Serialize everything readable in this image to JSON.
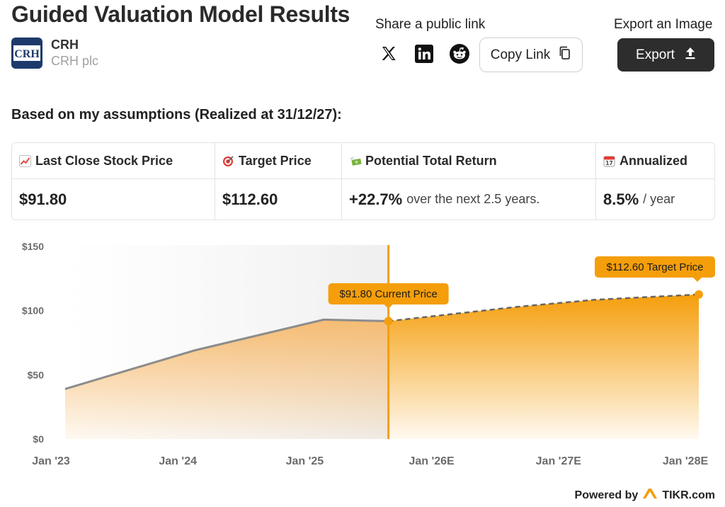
{
  "header": {
    "title": "Guided Valuation Model Results",
    "ticker": "CRH",
    "company_name": "CRH plc",
    "logo_text": "CRH"
  },
  "share": {
    "label": "Share a public link",
    "icons": [
      "x-icon",
      "linkedin-icon",
      "reddit-icon"
    ],
    "copy_link_label": "Copy Link"
  },
  "export": {
    "label": "Export an Image",
    "button_label": "Export"
  },
  "assumptions_text": "Based on my assumptions (Realized at 31/12/27):",
  "results": {
    "headers": [
      "Last Close Stock Price",
      "Target Price",
      "Potential Total Return",
      "Annualized"
    ],
    "last_close": "$91.80",
    "target": "$112.60",
    "return_value": "+22.7%",
    "return_suffix": "over the next 2.5 years.",
    "annualized_value": "8.5%",
    "annualized_suffix": "/ year"
  },
  "chart_data": {
    "type": "area",
    "x_labels": [
      "Jan '23",
      "Jan '24",
      "Jan '25",
      "Jan '26E",
      "Jan '27E",
      "Jan '28E"
    ],
    "y_ticks": [
      "$0",
      "$50",
      "$100",
      "$150"
    ],
    "ylim": [
      0,
      150
    ],
    "x_domain": [
      2023.0,
      2028.0
    ],
    "historical": [
      {
        "x": 2023.1,
        "y": 39
      },
      {
        "x": 2024.1,
        "y": 69
      },
      {
        "x": 2025.1,
        "y": 93
      },
      {
        "x": 2025.6,
        "y": 91.8
      }
    ],
    "projected": [
      {
        "x": 2025.6,
        "y": 91.8
      },
      {
        "x": 2026.6,
        "y": 103
      },
      {
        "x": 2027.2,
        "y": 108.5
      },
      {
        "x": 2028.0,
        "y": 112.6
      }
    ],
    "current_label": "$91.80 Current Price",
    "target_label": "$112.60 Target Price",
    "colors": {
      "accent": "#f59e0b",
      "historical_line": "#8c8c8c",
      "grid": "#e9e9e9"
    }
  },
  "footer": {
    "powered_by": "Powered by",
    "brand": "TIKR.com"
  }
}
